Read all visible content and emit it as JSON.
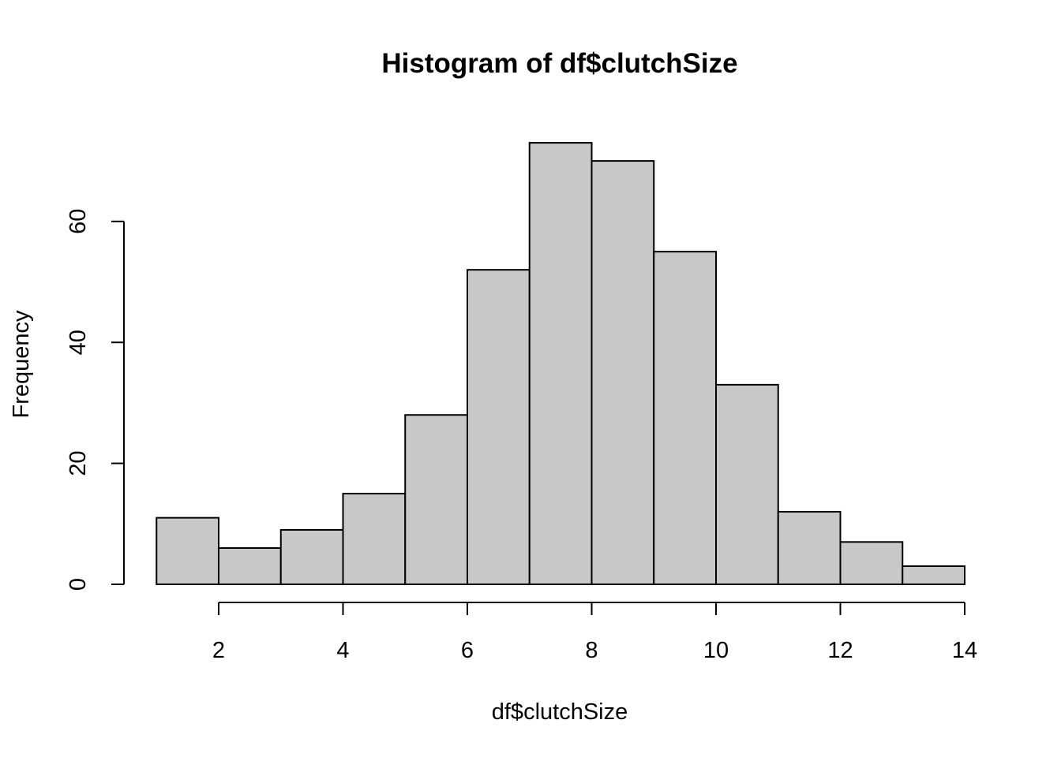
{
  "chart_data": {
    "type": "bar",
    "subtype": "histogram",
    "title": "Histogram of df$clutchSize",
    "xlabel": "df$clutchSize",
    "ylabel": "Frequency",
    "bins": [
      {
        "start": 1,
        "end": 2,
        "count": 11
      },
      {
        "start": 2,
        "end": 3,
        "count": 6
      },
      {
        "start": 3,
        "end": 4,
        "count": 9
      },
      {
        "start": 4,
        "end": 5,
        "count": 15
      },
      {
        "start": 5,
        "end": 6,
        "count": 28
      },
      {
        "start": 6,
        "end": 7,
        "count": 52
      },
      {
        "start": 7,
        "end": 8,
        "count": 73
      },
      {
        "start": 8,
        "end": 9,
        "count": 70
      },
      {
        "start": 9,
        "end": 10,
        "count": 55
      },
      {
        "start": 10,
        "end": 11,
        "count": 33
      },
      {
        "start": 11,
        "end": 12,
        "count": 12
      },
      {
        "start": 12,
        "end": 13,
        "count": 7
      },
      {
        "start": 13,
        "end": 14,
        "count": 3
      }
    ],
    "x_ticks": [
      2,
      4,
      6,
      8,
      10,
      12,
      14
    ],
    "y_ticks": [
      0,
      20,
      40,
      60
    ],
    "xlim": [
      1,
      14
    ],
    "ylim": [
      0,
      73
    ],
    "bar_color": "#C8C8C8",
    "border_color": "#000000",
    "grid": false
  }
}
